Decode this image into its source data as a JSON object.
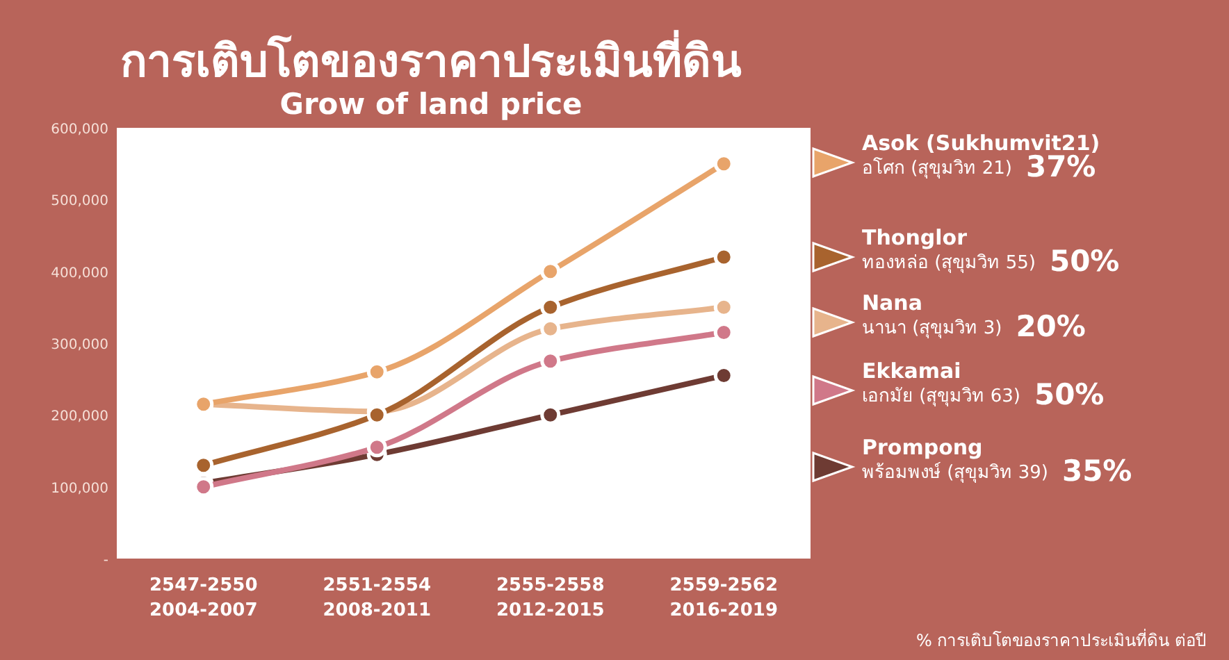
{
  "chart_data": {
    "type": "line",
    "title": "การเติบโตของราคาประเมินที่ดิน",
    "subtitle": "Grow of land price",
    "categories": [
      "2547-2550\n2004-2007",
      "2551-2554\n2008-2011",
      "2555-2558\n2012-2015",
      "2559-2562\n2016-2019"
    ],
    "series": [
      {
        "name": "Asok (Sukhumvit21)\nอโศก (สุขุมวิท 21)",
        "color": "#e8a46a",
        "values": [
          215000,
          260000,
          400000,
          550000
        ]
      },
      {
        "name": "Thonglor\nทองหล่อ (สุขุมวิท 55)",
        "color": "#a8632e",
        "values": [
          130000,
          200000,
          350000,
          420000
        ]
      },
      {
        "name": "Nana\nนานา (สุขุมวิท 3)",
        "color": "#e7b48c",
        "values": [
          215000,
          205000,
          320000,
          350000
        ]
      },
      {
        "name": "Ekkamai\nเอกมัย (สุขุมวิท 63)",
        "color": "#d07889",
        "values": [
          100000,
          155000,
          275000,
          315000
        ]
      },
      {
        "name": "Prompong\nพร้อมพงษ์ (สุขุมวิท 39)",
        "color": "#6e3b33",
        "values": [
          105000,
          145000,
          200000,
          255000
        ]
      }
    ],
    "annotations": [
      "37%",
      "50%",
      "20%",
      "50%",
      "35%",
      "% การเติบโตของราคาประเมินที่ดิน ต่อปี"
    ],
    "ylim": [
      0,
      600000
    ],
    "yticks": [
      {
        "value": 0,
        "label": "-"
      },
      {
        "value": 100000,
        "label": "100,000"
      },
      {
        "value": 200000,
        "label": "200,000"
      },
      {
        "value": 300000,
        "label": "300,000"
      },
      {
        "value": 400000,
        "label": "400,000"
      },
      {
        "value": 500000,
        "label": "500,000"
      },
      {
        "value": 600000,
        "label": "600,000"
      }
    ],
    "grid": false,
    "legend": "right",
    "marker": "circle",
    "line_style": "solid"
  }
}
